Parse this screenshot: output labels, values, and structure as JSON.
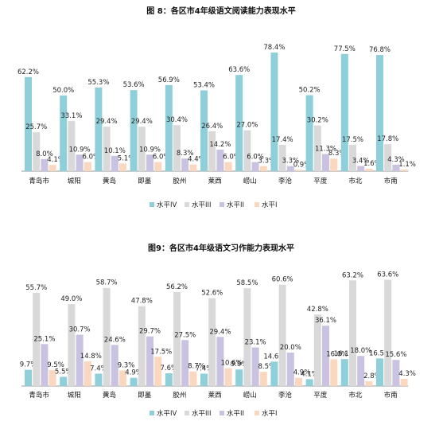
{
  "chart_data": [
    {
      "type": "bar",
      "title": "图 8：各区市4年级语文阅读能力表现水平",
      "categories": [
        "青岛市",
        "城阳",
        "黄岛",
        "即墨",
        "胶州",
        "莱西",
        "崂山",
        "李沧",
        "平度",
        "市北",
        "市南"
      ],
      "series": [
        {
          "name": "水平IV",
          "values": [
            62.2,
            50.0,
            55.3,
            53.6,
            56.9,
            53.4,
            63.6,
            78.4,
            50.2,
            77.5,
            76.8
          ]
        },
        {
          "name": "水平III",
          "values": [
            25.7,
            33.1,
            29.4,
            29.4,
            30.4,
            26.4,
            27.0,
            17.4,
            30.2,
            17.5,
            17.8
          ]
        },
        {
          "name": "水平II",
          "values": [
            8.0,
            10.9,
            10.1,
            10.9,
            8.3,
            14.2,
            6.0,
            3.3,
            11.3,
            3.4,
            4.3
          ]
        },
        {
          "name": "水平I",
          "values": [
            4.1,
            6.0,
            5.1,
            6.0,
            4.4,
            6.0,
            3.3,
            0.9,
            8.3,
            1.6,
            1.1
          ]
        }
      ],
      "value_labels": [
        [
          "62.2%",
          "50.0%",
          "55.3%",
          "53.6%",
          "56.9%",
          "53.4%",
          "63.6%",
          "78.4%",
          "50.2%",
          "77.5%",
          "76.8%"
        ],
        [
          "25.7%",
          "33.1%",
          "29.4%",
          "29.4%",
          "30.4%",
          "26.4%",
          "27.0%",
          "17.4%",
          "30.2%",
          "17.5%",
          "17.8%"
        ],
        [
          "8.0%",
          "10.9%",
          "10.1%",
          "10.9%",
          "8.3%",
          "14.2%",
          "6.0%",
          "3.3%",
          "11.3%",
          "3.4%",
          "4.3%"
        ],
        [
          "4.1%",
          "6.0%",
          "5.1%",
          "6.0%",
          "4.4%",
          "6.0%",
          "3.3%",
          "0.9%",
          "8.3%",
          "1.6%",
          "1.1%"
        ]
      ],
      "ylim": [
        0,
        80
      ],
      "grid": false,
      "legend": "bottom"
    },
    {
      "type": "bar",
      "title": "图9：各区市4年级语文习作能力表现水平",
      "categories": [
        "青岛市",
        "城阳",
        "黄岛",
        "即墨",
        "胶州",
        "莱西",
        "崂山",
        "李沧",
        "平度",
        "市北",
        "市南"
      ],
      "series": [
        {
          "name": "水平IV",
          "values": [
            9.7,
            5.5,
            7.4,
            4.9,
            7.6,
            7.4,
            9.9,
            14.6,
            4.1,
            16.1,
            16.5
          ]
        },
        {
          "name": "水平III",
          "values": [
            55.7,
            49.0,
            58.7,
            47.8,
            56.2,
            52.6,
            58.5,
            60.6,
            42.8,
            63.2,
            63.6
          ]
        },
        {
          "name": "水平II",
          "values": [
            25.1,
            30.7,
            24.6,
            29.7,
            27.5,
            29.4,
            23.1,
            20.0,
            36.1,
            18.0,
            15.6
          ]
        },
        {
          "name": "水平I",
          "values": [
            9.5,
            14.8,
            9.3,
            17.5,
            8.7,
            10.6,
            8.5,
            4.9,
            16.0,
            2.8,
            4.3
          ]
        }
      ],
      "value_labels": [
        [
          "9.7%",
          "5.5%",
          "7.4%",
          "4.9%",
          "7.6%",
          "7.4%",
          "9.9%",
          "14.6%",
          "4.1%",
          "16.1%",
          "16.5%"
        ],
        [
          "55.7%",
          "49.0%",
          "58.7%",
          "47.8%",
          "56.2%",
          "52.6%",
          "58.5%",
          "60.6%",
          "42.8%",
          "63.2%",
          "63.6%"
        ],
        [
          "25.1%",
          "30.7%",
          "24.6%",
          "29.7%",
          "27.5%",
          "29.4%",
          "23.1%",
          "20.0%",
          "36.1%",
          "18.0%",
          "15.6%"
        ],
        [
          "9.5%",
          "14.8%",
          "9.3%",
          "17.5%",
          "8.7%",
          "10.6%",
          "8.5%",
          "4.9%",
          "16.0%",
          "2.8%",
          "4.3%"
        ]
      ],
      "ylim": [
        0,
        70
      ],
      "grid": false,
      "legend": "bottom"
    }
  ],
  "colors": {
    "series": [
      "#8ecfd9",
      "#d9d9d9",
      "#c9c2e0",
      "#fad7bf"
    ],
    "axis": "#999999"
  }
}
